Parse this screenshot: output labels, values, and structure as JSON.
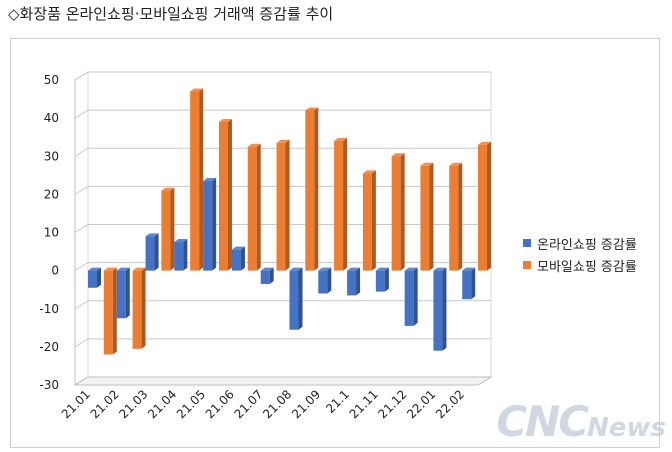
{
  "title": "◇화장품 온라인쇼핑·모바일쇼핑 거래액 증감률 추이",
  "watermark": {
    "main": "CNC",
    "sub": "News"
  },
  "chart_data": {
    "type": "bar",
    "categories": [
      "21.01",
      "21.02",
      "21.03",
      "21.04",
      "21.05",
      "21.06",
      "21.07",
      "21.08",
      "21.09",
      "21.1",
      "21.11",
      "21.12",
      "22.01",
      "22.02"
    ],
    "series": [
      {
        "name": "온라인쇼핑 증감률",
        "color": "#4472C4",
        "values": [
          -4.5,
          -12.5,
          9.0,
          7.5,
          23.5,
          5.5,
          -3.5,
          -15.5,
          -6.0,
          -6.5,
          -5.5,
          -14.5,
          -21.0,
          -7.5
        ]
      },
      {
        "name": "모바일쇼핑 증감률",
        "color": "#ED7D31",
        "values": [
          -22.0,
          -20.5,
          21.0,
          47.0,
          39.0,
          32.5,
          33.5,
          42.0,
          34.0,
          25.5,
          30.0,
          27.5,
          27.5,
          33.0
        ]
      }
    ],
    "yticks": [
      "50",
      "40",
      "30",
      "20",
      "10",
      "0",
      "-10",
      "-20",
      "-30"
    ],
    "ylim": [
      -30,
      50
    ],
    "grid": true,
    "legend_position": "right"
  }
}
